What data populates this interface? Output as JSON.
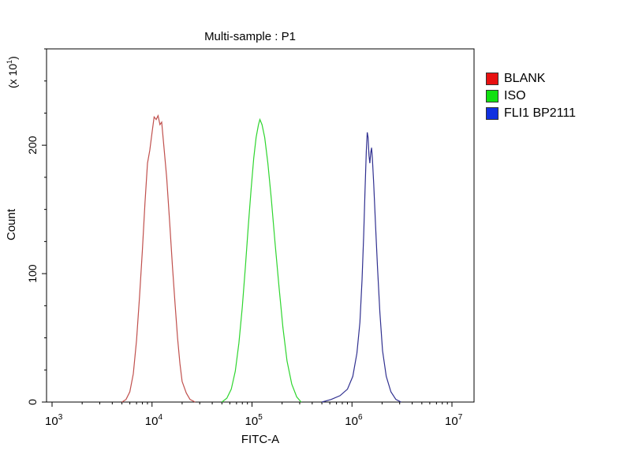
{
  "chart_data": {
    "type": "line",
    "title": "Multi-sample : P1",
    "xlabel": "FITC-A",
    "ylabel": "Count",
    "y_multiplier_label": "(x 10",
    "y_multiplier_exp": "1",
    "y_multiplier_close": ")",
    "x_scale": "log",
    "xlim": [
      1000,
      10000000
    ],
    "ylim": [
      0,
      27.5
    ],
    "x_ticks": [
      {
        "value": 1000,
        "base": "10",
        "exp": "3"
      },
      {
        "value": 10000,
        "base": "10",
        "exp": "4"
      },
      {
        "value": 100000,
        "base": "10",
        "exp": "5"
      },
      {
        "value": 1000000,
        "base": "10",
        "exp": "6"
      },
      {
        "value": 10000000,
        "base": "10",
        "exp": "7"
      }
    ],
    "y_ticks": [
      {
        "value": 0,
        "label": "0"
      },
      {
        "value": 10,
        "label": "100"
      },
      {
        "value": 20,
        "label": "200"
      }
    ],
    "legend_position": "right",
    "grid": false,
    "series": [
      {
        "name": "BLANK",
        "color": "#c0504d",
        "swatch": "#e81010",
        "points": [
          [
            5000,
            0
          ],
          [
            5500,
            0.2
          ],
          [
            6000,
            0.8
          ],
          [
            6500,
            2.2
          ],
          [
            7000,
            4.8
          ],
          [
            7500,
            8.2
          ],
          [
            8000,
            11.8
          ],
          [
            8500,
            15.5
          ],
          [
            9000,
            18.6
          ],
          [
            9500,
            19.6
          ],
          [
            10000,
            21.0
          ],
          [
            10500,
            22.2
          ],
          [
            11000,
            22.0
          ],
          [
            11500,
            22.3
          ],
          [
            12000,
            21.6
          ],
          [
            12500,
            21.8
          ],
          [
            13000,
            20.3
          ],
          [
            14000,
            17.5
          ],
          [
            15000,
            14.0
          ],
          [
            16000,
            10.6
          ],
          [
            17000,
            7.6
          ],
          [
            18000,
            5.0
          ],
          [
            19000,
            3.0
          ],
          [
            20000,
            1.6
          ],
          [
            22000,
            0.7
          ],
          [
            24000,
            0.2
          ],
          [
            27000,
            0
          ]
        ]
      },
      {
        "name": "ISO",
        "color": "#2ed52e",
        "swatch": "#10e010",
        "points": [
          [
            50000,
            0
          ],
          [
            56000,
            0.3
          ],
          [
            62000,
            1.0
          ],
          [
            68000,
            2.4
          ],
          [
            74000,
            4.6
          ],
          [
            80000,
            7.4
          ],
          [
            86000,
            10.6
          ],
          [
            92000,
            13.8
          ],
          [
            98000,
            16.6
          ],
          [
            104000,
            19.0
          ],
          [
            110000,
            20.6
          ],
          [
            116000,
            21.6
          ],
          [
            120000,
            22.0
          ],
          [
            126000,
            21.6
          ],
          [
            134000,
            20.6
          ],
          [
            144000,
            18.6
          ],
          [
            156000,
            15.8
          ],
          [
            170000,
            12.4
          ],
          [
            186000,
            9.0
          ],
          [
            204000,
            5.8
          ],
          [
            224000,
            3.2
          ],
          [
            250000,
            1.4
          ],
          [
            280000,
            0.4
          ],
          [
            310000,
            0
          ]
        ]
      },
      {
        "name": "FLI1 BP2111",
        "color": "#303090",
        "swatch": "#1030e0",
        "points": [
          [
            500000,
            0
          ],
          [
            620000,
            0.2
          ],
          [
            760000,
            0.5
          ],
          [
            900000,
            1.0
          ],
          [
            1020000,
            2.0
          ],
          [
            1120000,
            3.8
          ],
          [
            1200000,
            6.2
          ],
          [
            1260000,
            9.5
          ],
          [
            1310000,
            13.0
          ],
          [
            1350000,
            16.5
          ],
          [
            1390000,
            19.5
          ],
          [
            1420000,
            21.0
          ],
          [
            1450000,
            20.6
          ],
          [
            1480000,
            19.2
          ],
          [
            1510000,
            18.6
          ],
          [
            1540000,
            19.4
          ],
          [
            1570000,
            19.8
          ],
          [
            1600000,
            19.0
          ],
          [
            1650000,
            17.0
          ],
          [
            1720000,
            13.8
          ],
          [
            1800000,
            10.5
          ],
          [
            1900000,
            7.0
          ],
          [
            2020000,
            4.0
          ],
          [
            2200000,
            2.0
          ],
          [
            2450000,
            0.8
          ],
          [
            2750000,
            0.2
          ],
          [
            3100000,
            0
          ]
        ]
      }
    ]
  }
}
